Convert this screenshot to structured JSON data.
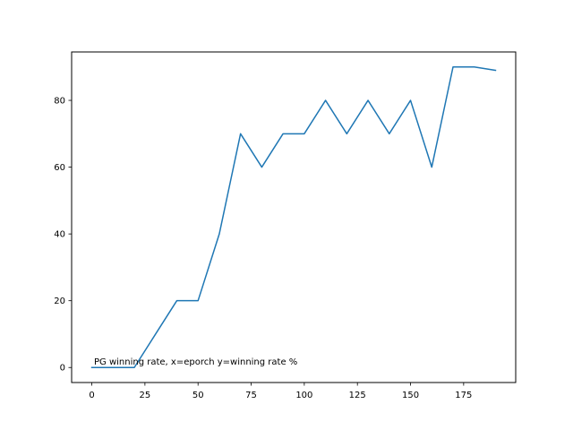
{
  "chart_data": {
    "type": "line",
    "title": "",
    "xlabel": "",
    "ylabel": "",
    "annotation": "PG winning rate, x=eporch y=winning rate %",
    "xlim": [
      -9.5,
      199.5
    ],
    "ylim": [
      -4.5,
      94.5
    ],
    "xticks": [
      0,
      25,
      50,
      75,
      100,
      125,
      150,
      175
    ],
    "yticks": [
      0,
      20,
      40,
      60,
      80
    ],
    "grid": false,
    "legend": "none",
    "series": [
      {
        "color": "#1f77b4",
        "x": [
          0,
          10,
          20,
          30,
          40,
          50,
          60,
          70,
          80,
          90,
          100,
          110,
          120,
          130,
          140,
          150,
          160,
          170,
          180,
          190
        ],
        "y": [
          0,
          0,
          0,
          10,
          20,
          20,
          40,
          70,
          60,
          70,
          70,
          80,
          70,
          80,
          70,
          80,
          60,
          90,
          90,
          89
        ]
      }
    ]
  }
}
